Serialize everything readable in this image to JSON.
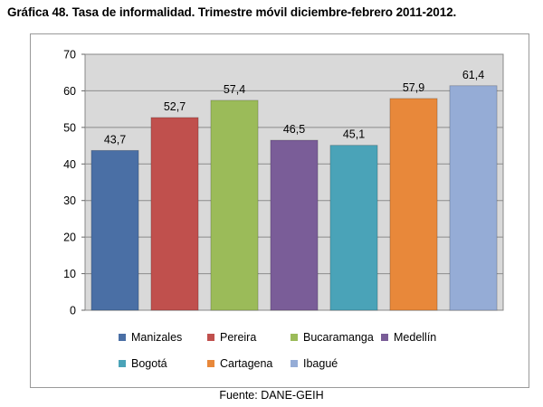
{
  "header": {
    "title": "Gráfica 48.  Tasa de informalidad. Trimestre móvil diciembre-febrero 2011-2012."
  },
  "footer": {
    "source": "Fuente: DANE-GEIH"
  },
  "chart_data": {
    "type": "bar",
    "title": "Gráfica 48.  Tasa de informalidad. Trimestre móvil diciembre-febrero 2011-2012.",
    "xlabel": "",
    "ylabel": "",
    "ylim": [
      0,
      70
    ],
    "yticks": [
      "0",
      "10",
      "20",
      "30",
      "40",
      "50",
      "60",
      "70"
    ],
    "grid": true,
    "legend_position": "bottom",
    "categories": [
      "Manizales",
      "Pereira",
      "Bucaramanga",
      "Medellín",
      "Bogotá",
      "Cartagena",
      "Ibagué"
    ],
    "values": [
      43.7,
      52.7,
      57.4,
      46.5,
      45.1,
      57.9,
      61.4
    ],
    "data_labels": [
      "43,7",
      "52,7",
      "57,4",
      "46,5",
      "45,1",
      "57,9",
      "61,4"
    ],
    "colors": [
      "#4a6fa5",
      "#c0504d",
      "#9bbb59",
      "#7a5d98",
      "#4aa3b8",
      "#e8883a",
      "#95acd6"
    ],
    "plot_background": "#d9d9d9"
  }
}
